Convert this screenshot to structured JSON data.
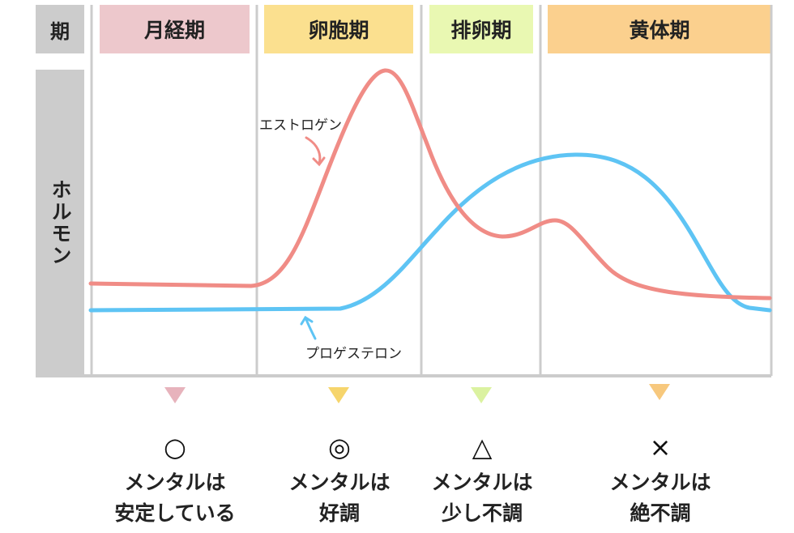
{
  "header": {
    "period_label": "期",
    "hormone_label": "ホルモン"
  },
  "phases": [
    {
      "name": "月経期",
      "color": "#edc8cc",
      "marker_color": "#e7b3bc",
      "symbol": "○",
      "mental_line1": "メンタルは",
      "mental_line2": "安定している"
    },
    {
      "name": "卵胞期",
      "color": "#fbe08f",
      "marker_color": "#f6d56c",
      "symbol": "◎",
      "mental_line1": "メンタルは",
      "mental_line2": "好調"
    },
    {
      "name": "排卵期",
      "color": "#e9f8b2",
      "marker_color": "#dbf2a0",
      "symbol": "△",
      "mental_line1": "メンタルは",
      "mental_line2": "少し不調"
    },
    {
      "name": "黄体期",
      "color": "#fbd08e",
      "marker_color": "#f7c87d",
      "symbol": "×",
      "mental_line1": "メンタルは",
      "mental_line2": "絶不調"
    }
  ],
  "curves": {
    "estrogen": {
      "label": "エストロゲン",
      "color": "#f08c86"
    },
    "progesterone": {
      "label": "プロゲステロン",
      "color": "#5ec4f4"
    }
  },
  "colors": {
    "grid": "#cccccc",
    "side_panel": "#cccccc"
  }
}
